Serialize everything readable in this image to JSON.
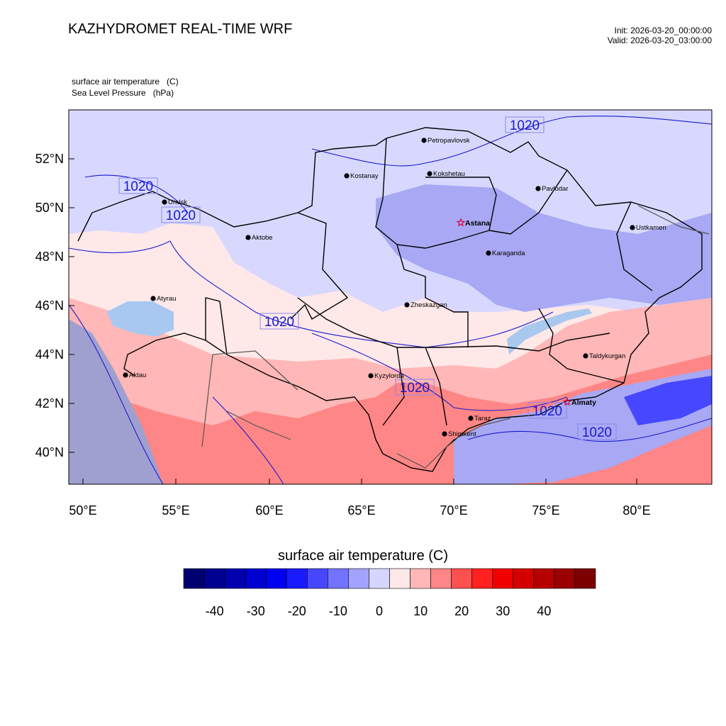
{
  "header": {
    "title": "KAZHYDROMET REAL-TIME WRF",
    "init": "Init: 2026-03-20_00:00:00",
    "valid": "Valid: 2026-03-20_03:00:00"
  },
  "fields": {
    "primary": "surface air temperature   (C)",
    "secondary": "Sea Level Pressure   (hPa)"
  },
  "axes": {
    "lat_labels": [
      "52°N",
      "50°N",
      "48°N",
      "46°N",
      "44°N",
      "42°N",
      "40°N"
    ],
    "lon_labels": [
      "50°E",
      "55°E",
      "60°E",
      "65°E",
      "70°E",
      "75°E",
      "80°E"
    ]
  },
  "cities": [
    {
      "name": "Petropavlovsk",
      "capital": false
    },
    {
      "name": "Kostanay",
      "capital": false
    },
    {
      "name": "Kokshetau",
      "capital": false
    },
    {
      "name": "Pavlodar",
      "capital": false
    },
    {
      "name": "Uralsk",
      "capital": false
    },
    {
      "name": "Aktobe",
      "capital": false
    },
    {
      "name": "Astana",
      "capital": true
    },
    {
      "name": "Ust-Kamenogorsk",
      "label": "Ustkamen",
      "capital": false
    },
    {
      "name": "Karaganda",
      "capital": false
    },
    {
      "name": "Atyrau",
      "capital": false
    },
    {
      "name": "Zheskazgan",
      "capital": false
    },
    {
      "name": "Taldykurgan",
      "capital": false
    },
    {
      "name": "Kyzylorda",
      "capital": false
    },
    {
      "name": "Aktau",
      "capital": false
    },
    {
      "name": "Almaty",
      "capital": true
    },
    {
      "name": "Taraz",
      "capital": false
    },
    {
      "name": "Shimkent",
      "capital": false
    }
  ],
  "isobar_labels": [
    "1020",
    "1020",
    "1020",
    "1020",
    "1020",
    "1020",
    "1020"
  ],
  "colorbar": {
    "title": "surface air temperature  (C)",
    "tick_labels": [
      "-40",
      "-30",
      "-20",
      "-10",
      "0",
      "10",
      "20",
      "30",
      "40"
    ],
    "colors": [
      "#000070",
      "#000090",
      "#0000b0",
      "#0000d0",
      "#0000f0",
      "#1a1aff",
      "#4747ff",
      "#7373ff",
      "#a3a3ff",
      "#d5d5ff",
      "#ffe8e8",
      "#ffb7b7",
      "#ff8686",
      "#ff5050",
      "#ff2020",
      "#f00000",
      "#d40000",
      "#b60000",
      "#9a0000",
      "#7c0000"
    ]
  },
  "map_colors": {
    "cold": "#d8d8ff",
    "cool": "#a8a8f4",
    "neutral": "#ffe8e8",
    "warm": "#ffb7b7",
    "hot": "#ff8686",
    "lake": "#a8c8f0",
    "sea": "#a0a0d0",
    "isobar": "#1a1ad0",
    "border": "#000000"
  }
}
